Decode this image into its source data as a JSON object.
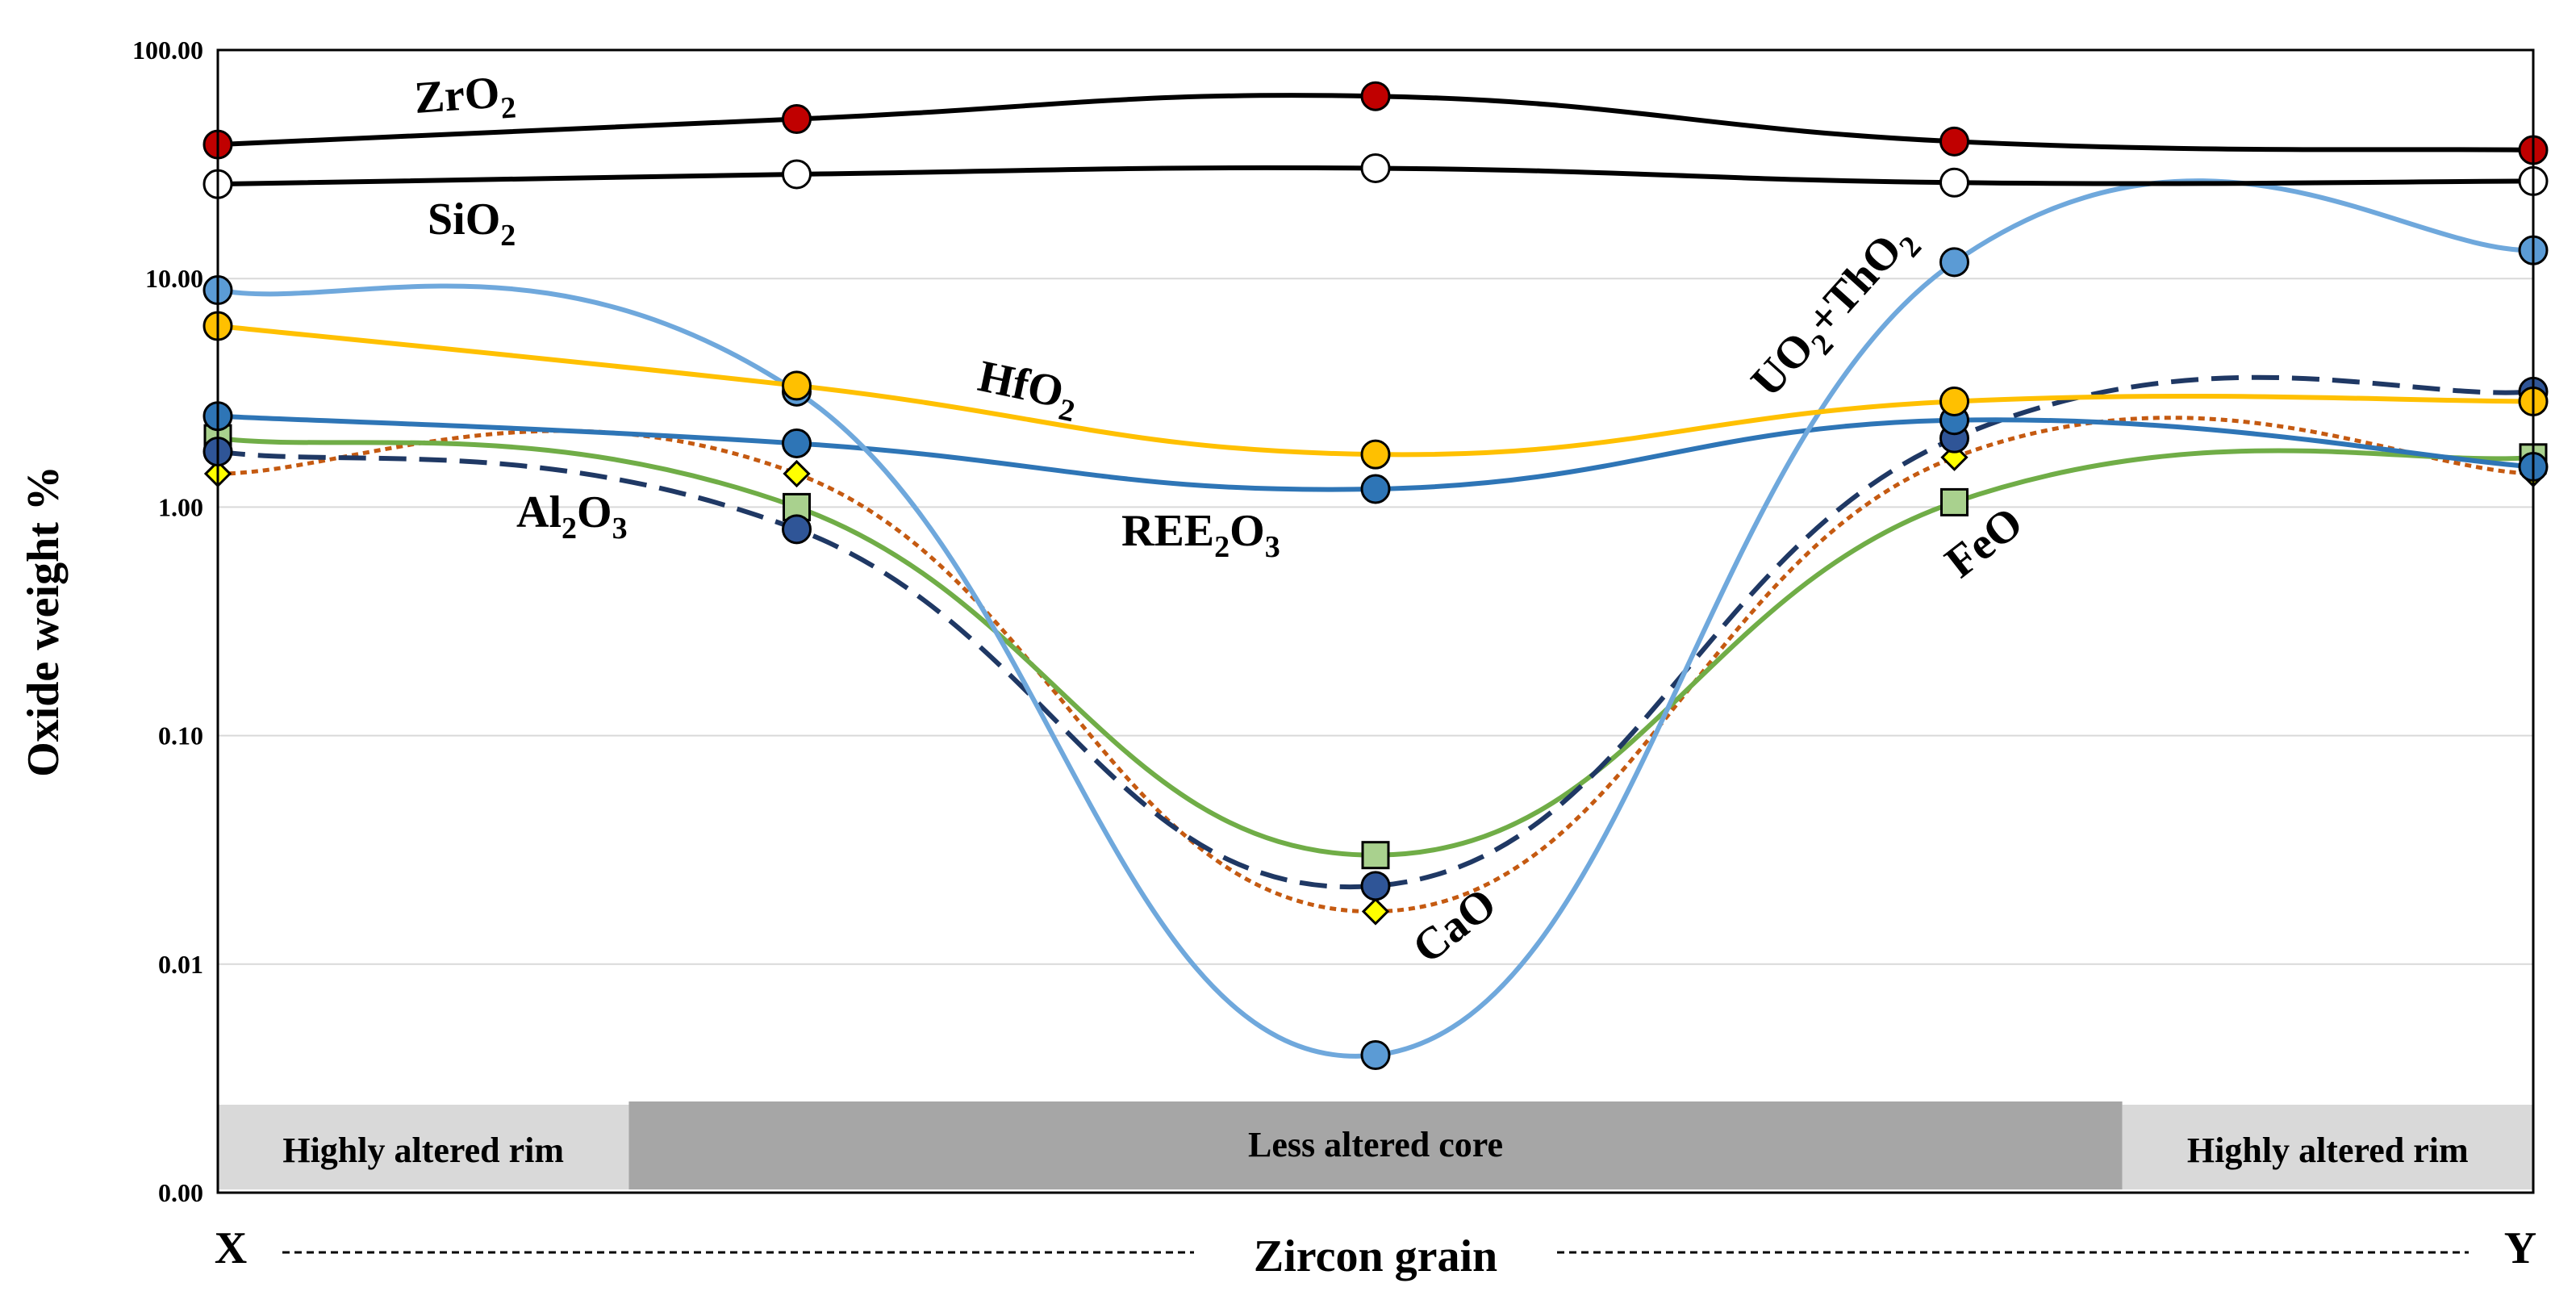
{
  "chart_data": {
    "type": "line",
    "ylabel": "Oxide weight %",
    "xlabel": "Zircon grain",
    "x_start_label": "X",
    "x_end_label": "Y",
    "yscale": "log",
    "ylim": [
      0.001,
      100
    ],
    "y_ticks": [
      {
        "value": 100,
        "label": "100.00"
      },
      {
        "value": 10,
        "label": "10.00"
      },
      {
        "value": 1,
        "label": "1.00"
      },
      {
        "value": 0.1,
        "label": "0.10"
      },
      {
        "value": 0.01,
        "label": "0.01"
      },
      {
        "value": 0.001,
        "label": "0.00"
      }
    ],
    "x": [
      0,
      1,
      2,
      3,
      4
    ],
    "xlim": [
      0,
      4
    ],
    "zones": [
      {
        "label": "Highly altered rim",
        "from": 0,
        "to": 0.71,
        "color": "#d9d9d9"
      },
      {
        "label": "Less altered core",
        "from": 0.71,
        "to": 3.29,
        "color": "#a6a6a6"
      },
      {
        "label": "Highly altered rim",
        "from": 3.29,
        "to": 4,
        "color": "#d9d9d9"
      }
    ],
    "series": [
      {
        "name": "ZrO2",
        "label": "ZrO",
        "sub": "2",
        "values": [
          38.6,
          49.9,
          62.8,
          39.8,
          36.5
        ],
        "line": "#000000",
        "dash": "",
        "marker": "circle",
        "fill": "#c00000"
      },
      {
        "name": "SiO2",
        "label": "SiO",
        "sub": "2",
        "values": [
          25.9,
          28.6,
          30.4,
          26.3,
          26.7
        ],
        "line": "#000000",
        "dash": "",
        "marker": "circle",
        "fill": "#ffffff"
      },
      {
        "name": "UO2+ThO2",
        "label": "UO",
        "sub": "2",
        "label2": "+ThO",
        "sub2": "2",
        "values": [
          8.9,
          3.2,
          0.004,
          11.8,
          13.3
        ],
        "line": "#6fa8dc",
        "dash": "",
        "marker": "circle",
        "fill": "#5b9bd5"
      },
      {
        "name": "HfO2",
        "label": "HfO",
        "sub": "2",
        "values": [
          6.2,
          3.4,
          1.7,
          2.9,
          2.9
        ],
        "line": "#ffc000",
        "dash": "",
        "marker": "circle",
        "fill": "#ffc000"
      },
      {
        "name": "REE2O3",
        "label": "REE",
        "sub": "2",
        "label2": "O",
        "sub2": "3",
        "values": [
          2.5,
          1.9,
          1.2,
          2.4,
          1.5
        ],
        "line": "#2e75b6",
        "dash": "",
        "marker": "circle",
        "fill": "#2e75b6"
      },
      {
        "name": "Al2O3",
        "label": "Al",
        "sub": "2",
        "label2": "O",
        "sub2": "3",
        "values": [
          1.75,
          0.8,
          0.022,
          2.0,
          3.2
        ],
        "line": "#1f3864",
        "dash": "34 16",
        "marker": "circle",
        "fill": "#2f5597"
      },
      {
        "name": "FeO",
        "label": "FeO",
        "values": [
          2.0,
          1.0,
          0.03,
          1.05,
          1.65
        ],
        "line": "#70ad47",
        "dash": "",
        "marker": "square",
        "fill": "#a9d18e"
      },
      {
        "name": "CaO",
        "label": "CaO",
        "values": [
          1.4,
          1.4,
          0.017,
          1.65,
          1.4
        ],
        "line": "#c55a11",
        "dash": "8 6",
        "marker": "diamond",
        "fill": "#ffff00"
      }
    ]
  }
}
